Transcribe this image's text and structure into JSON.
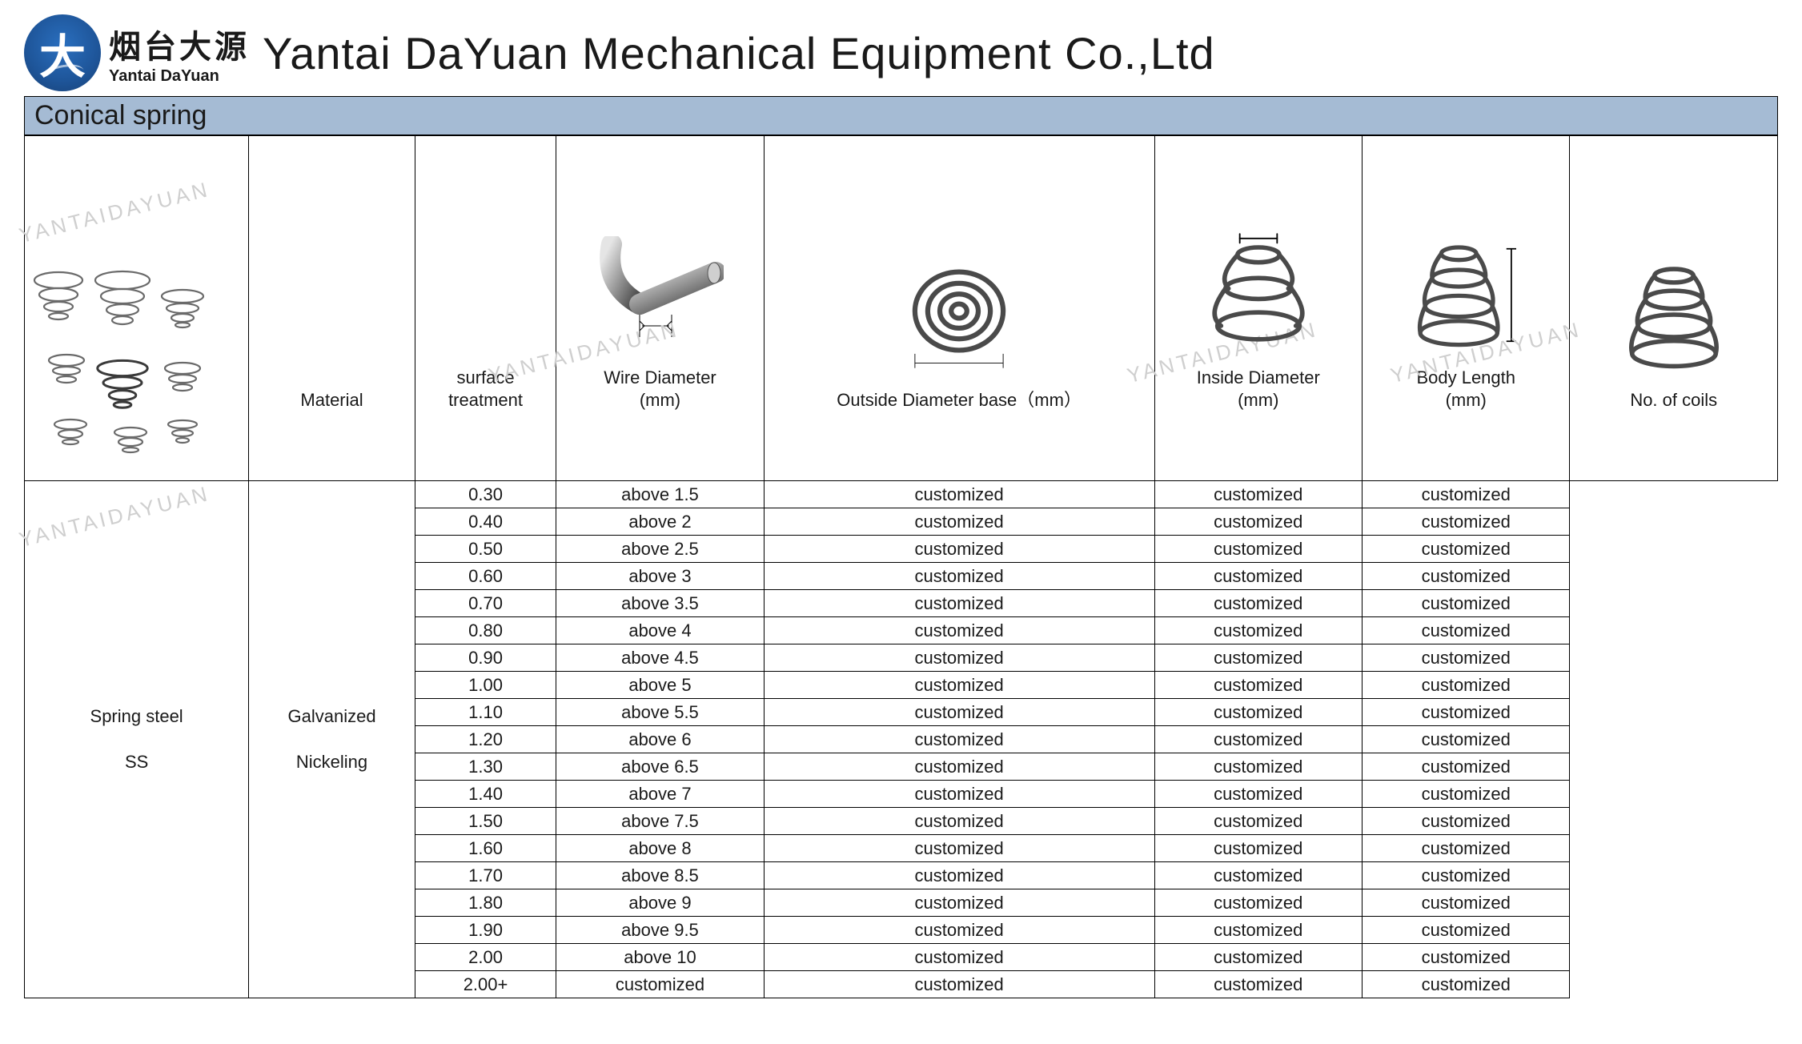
{
  "header": {
    "logo_glyph": "大",
    "logo_cn": "烟台大源",
    "logo_en": "Yantai DaYuan",
    "company": "Yantai DaYuan Mechanical Equipment Co.,Ltd"
  },
  "title": "Conical spring",
  "watermark": "YANTAIDAYUAN",
  "colors": {
    "title_bg": "#a5bbd4",
    "border": "#000000",
    "text": "#1a1a1a",
    "watermark": "#cfcfcf",
    "logo_bg": "#1e5599",
    "spring_stroke": "#6a6a6a",
    "spring_light": "#b0b0b0"
  },
  "table": {
    "columns": [
      {
        "key": "product_image",
        "label": ""
      },
      {
        "key": "material",
        "label": "Material"
      },
      {
        "key": "surface",
        "label": "surface\ntreatment"
      },
      {
        "key": "wire_dia",
        "label": "Wire Diameter\n(mm)"
      },
      {
        "key": "od_base",
        "label": "Outside Diameter base（mm）"
      },
      {
        "key": "id",
        "label": "Inside Diameter\n(mm)"
      },
      {
        "key": "body_len",
        "label": "Body Length\n(mm)"
      },
      {
        "key": "coils",
        "label": "No. of coils"
      }
    ],
    "material_values": [
      "Spring steel",
      "SS"
    ],
    "surface_values": [
      "Galvanized",
      "Nickeling"
    ],
    "rows": [
      {
        "wire": "0.30",
        "od": "above 1.5",
        "id": "customized",
        "len": "customized",
        "coils": "customized"
      },
      {
        "wire": "0.40",
        "od": "above 2",
        "id": "customized",
        "len": "customized",
        "coils": "customized"
      },
      {
        "wire": "0.50",
        "od": "above 2.5",
        "id": "customized",
        "len": "customized",
        "coils": "customized"
      },
      {
        "wire": "0.60",
        "od": "above 3",
        "id": "customized",
        "len": "customized",
        "coils": "customized"
      },
      {
        "wire": "0.70",
        "od": "above 3.5",
        "id": "customized",
        "len": "customized",
        "coils": "customized"
      },
      {
        "wire": "0.80",
        "od": "above 4",
        "id": "customized",
        "len": "customized",
        "coils": "customized"
      },
      {
        "wire": "0.90",
        "od": "above 4.5",
        "id": "customized",
        "len": "customized",
        "coils": "customized"
      },
      {
        "wire": "1.00",
        "od": "above 5",
        "id": "customized",
        "len": "customized",
        "coils": "customized"
      },
      {
        "wire": "1.10",
        "od": "above 5.5",
        "id": "customized",
        "len": "customized",
        "coils": "customized"
      },
      {
        "wire": "1.20",
        "od": "above 6",
        "id": "customized",
        "len": "customized",
        "coils": "customized"
      },
      {
        "wire": "1.30",
        "od": "above 6.5",
        "id": "customized",
        "len": "customized",
        "coils": "customized"
      },
      {
        "wire": "1.40",
        "od": "above 7",
        "id": "customized",
        "len": "customized",
        "coils": "customized"
      },
      {
        "wire": "1.50",
        "od": "above 7.5",
        "id": "customized",
        "len": "customized",
        "coils": "customized"
      },
      {
        "wire": "1.60",
        "od": "above 8",
        "id": "customized",
        "len": "customized",
        "coils": "customized"
      },
      {
        "wire": "1.70",
        "od": "above 8.5",
        "id": "customized",
        "len": "customized",
        "coils": "customized"
      },
      {
        "wire": "1.80",
        "od": "above 9",
        "id": "customized",
        "len": "customized",
        "coils": "customized"
      },
      {
        "wire": "1.90",
        "od": "above 9.5",
        "id": "customized",
        "len": "customized",
        "coils": "customized"
      },
      {
        "wire": "2.00",
        "od": "above 10",
        "id": "customized",
        "len": "customized",
        "coils": "customized"
      },
      {
        "wire": "2.00+",
        "od": "customized",
        "id": "customized",
        "len": "customized",
        "coils": "customized"
      }
    ]
  }
}
